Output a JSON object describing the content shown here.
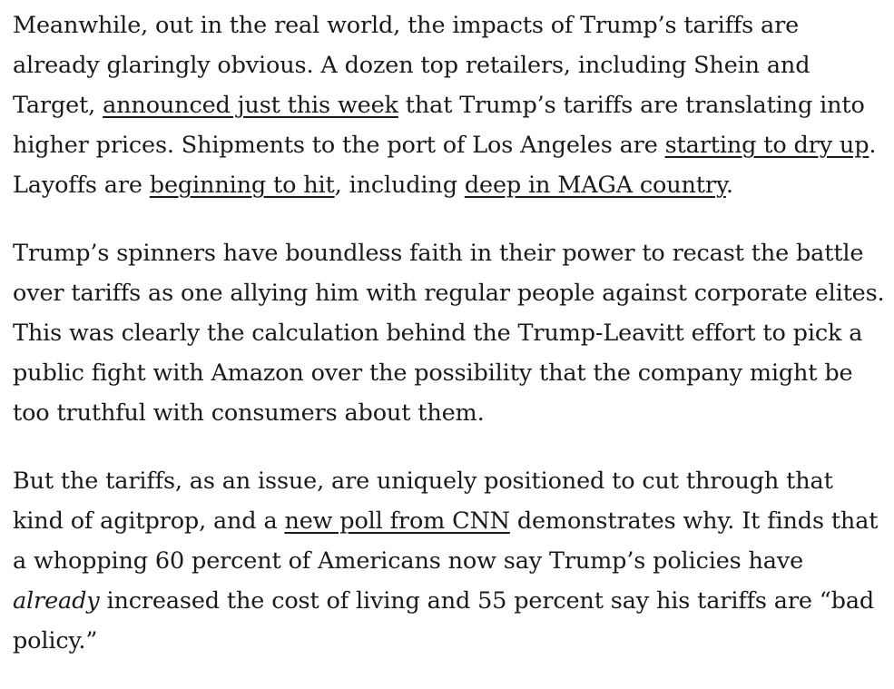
{
  "paragraphs": [
    {
      "s1": "Meanwhile, out in the real world, the impacts of Trump’s tariffs are already glaringly obvious. A dozen top retailers, including Shein and Target, ",
      "link1": "announced just this week",
      "s2": " that Trump’s tariffs are translating into higher prices. Shipments to the port of Los Angeles are ",
      "link2": "starting to dry up",
      "s3": ". Layoffs are ",
      "link3": "beginning to hit",
      "s4": ", including ",
      "link4": "deep in MAGA country",
      "s5": "."
    },
    {
      "text": "Trump’s spinners have boundless faith in their power to recast the battle over tariffs as one allying him with regular people against corporate elites. This was clearly the calculation behind the Trump-Leavitt effort to pick a public fight with Amazon over the possibility that the company might be too truthful with consumers about them."
    },
    {
      "s1": "But the tariffs, as an issue, are uniquely positioned to cut through that kind of agitprop, and a ",
      "link1": "new poll from CNN",
      "s2": " demonstrates why. It finds that a whopping 60 percent of Americans now say Trump’s policies have ",
      "em1": "already",
      "s3": " increased the cost of living and 55 percent say his tariffs are “bad policy.”"
    }
  ]
}
